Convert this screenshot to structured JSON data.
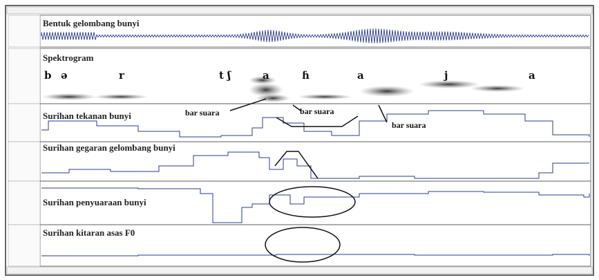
{
  "panels": [
    {
      "title": "Bentuk gelombang bunyi"
    },
    {
      "title": "Spektrogram"
    },
    {
      "title": "Surihan tekanan bunyi"
    },
    {
      "title": "Surihan gegaran gelombang bunyi"
    },
    {
      "title": "Surihan penyuaraan bunyi"
    },
    {
      "title": "Surihan kitaran asas F0"
    }
  ],
  "phonemes": [
    "b",
    "ə",
    "r",
    "t ʃ",
    "a",
    "ɦ",
    "a",
    "j",
    "a"
  ],
  "annotations": [
    "bar suara",
    "bar suara",
    "bar suara"
  ]
}
